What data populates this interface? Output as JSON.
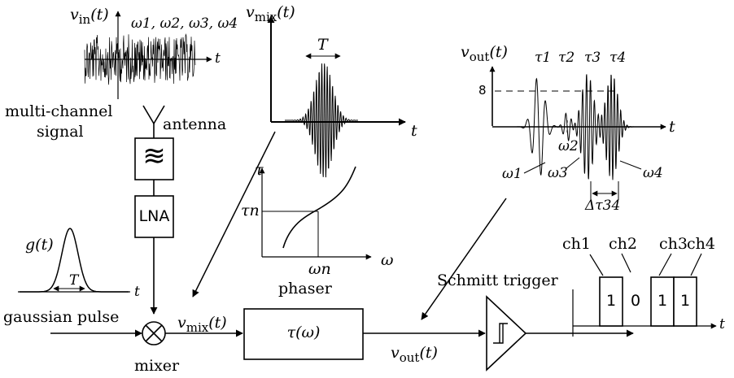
{
  "input": {
    "vin_label": "v",
    "vin_sub": "in",
    "vin_arg": "(t)",
    "freqs": "ω1, ω2, ω3, ω4",
    "axis_t": "t",
    "caption_line1": "multi-channel",
    "caption_line2": "signal",
    "antenna": "antenna"
  },
  "chain": {
    "filter_symbol": "≋",
    "lna": "LNA",
    "gaussian_label": "g(t)",
    "gaussian_T": "T",
    "gaussian_t": "t",
    "gaussian_caption": "gaussian pulse",
    "mixer_caption": "mixer",
    "vmix_out": "v",
    "vmix_out_sub": "mix",
    "vmix_out_arg": "(t)"
  },
  "mix_plot": {
    "ylabel": "v",
    "ylabel_sub": "mix",
    "ylabel_arg": "(t)",
    "T": "T",
    "t": "t"
  },
  "phaser_plot": {
    "ylabel": "τ",
    "tau_n": "τn",
    "omega_n": "ωn",
    "xlabel": "ω",
    "caption": "phaser"
  },
  "phaser_block": {
    "label": "τ(ω)"
  },
  "vout_line": {
    "label": "v",
    "sub": "out",
    "arg": "(t)"
  },
  "out_plot": {
    "ylabel": "v",
    "ylabel_sub": "out",
    "ylabel_arg": "(t)",
    "level": "8",
    "t": "t",
    "taus": [
      "τ1",
      "τ2",
      "τ3",
      "τ4"
    ],
    "omegas": [
      "ω1",
      "ω2",
      "ω3",
      "ω4"
    ],
    "delta": "Δτ34"
  },
  "schmitt": {
    "caption": "Schmitt trigger"
  },
  "bits_plot": {
    "channels": [
      "ch1",
      "ch2",
      "ch3",
      "ch4"
    ],
    "bits": [
      "1",
      "0",
      "1",
      "1"
    ],
    "t": "t"
  },
  "colors": {
    "ink": "#000000",
    "background": "#ffffff"
  }
}
